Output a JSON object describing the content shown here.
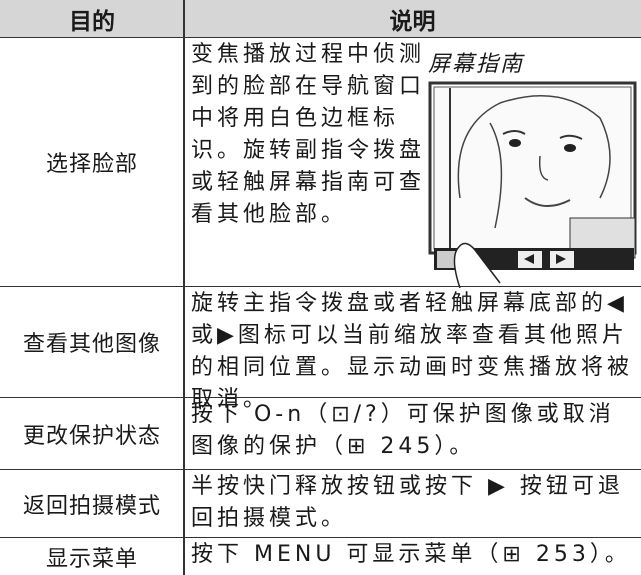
{
  "table": {
    "headers": [
      "目的",
      "说明"
    ],
    "rows": [
      {
        "purpose": "选择脸部",
        "description": "变焦播放过程中侦测到的脸部在导航窗口中将用白色边框标识。旋转副指令拨盘或轻触屏幕指南可查看其他脸部。",
        "figure_caption": "屏幕指南"
      },
      {
        "purpose": "查看其他图像",
        "description": "旋转主指令拨盘或者轻触屏幕底部的◀或▶图标可以当前缩放率查看其他照片的相同位置。显示动画时变焦播放将被取消。"
      },
      {
        "purpose": "更改保护状态",
        "description": "按下 O‑n（⊡/?）可保护图像或取消图像的保护（⊞ 245）。"
      },
      {
        "purpose": "返回拍摄模式",
        "description": "半按快门释放按钮或按下 ▶ 按钮可退回拍摄模式。"
      },
      {
        "purpose": "显示菜单",
        "description": "按下 MENU 可显示菜单（⊞ 253）。"
      }
    ]
  }
}
